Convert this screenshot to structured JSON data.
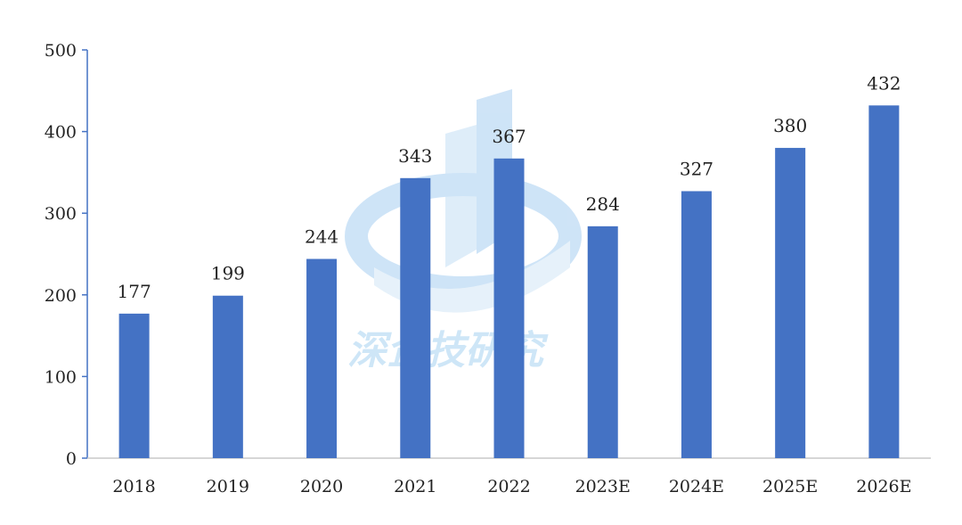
{
  "chart_data": {
    "type": "bar",
    "categories": [
      "2018",
      "2019",
      "2020",
      "2021",
      "2022",
      "2023E",
      "2024E",
      "2025E",
      "2026E"
    ],
    "values": [
      177,
      199,
      244,
      343,
      367,
      284,
      327,
      380,
      432
    ],
    "data_labels": [
      "177",
      "199",
      "244",
      "343",
      "367",
      "284",
      "327",
      "380",
      "432"
    ],
    "title": "",
    "xlabel": "",
    "ylabel": "",
    "ylim": [
      0,
      500
    ],
    "yticks": [
      "0",
      "100",
      "200",
      "300",
      "400",
      "500"
    ],
    "grid": false,
    "legend": "none",
    "bar_color": "#4472c4",
    "axis_color": "#4472c4"
  },
  "watermark": {
    "text": "深企技研究",
    "color": "#a7d3f2"
  }
}
